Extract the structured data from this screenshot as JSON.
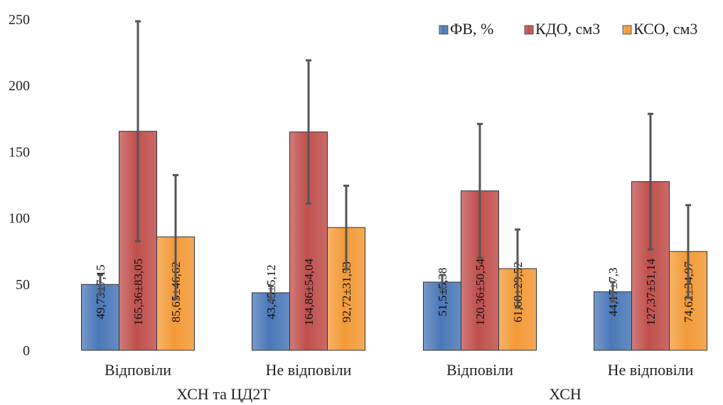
{
  "chart_data": {
    "type": "bar",
    "ylim": [
      0,
      250
    ],
    "y_ticks": [
      0,
      50,
      100,
      150,
      200,
      250
    ],
    "grid": false,
    "legend_position": "top-right",
    "categories": [
      "Відповіли",
      "Не відповіли",
      "Відповіли",
      "Не відповіли"
    ],
    "groups": [
      {
        "label": "ХСН та ЦД2Т",
        "span": [
          0,
          1
        ]
      },
      {
        "label": "ХСН",
        "span": [
          2,
          3
        ]
      }
    ],
    "series": [
      {
        "name": "ФВ, %",
        "color": "#4a78b8",
        "values": [
          49.73,
          43.45,
          51.5,
          44.17
        ],
        "errors": [
          7.15,
          5.12,
          5.38,
          7.3
        ],
        "labels": [
          "49,73±7,15",
          "43,45±5,12",
          "51,5±5,38",
          "44,17±7,3"
        ]
      },
      {
        "name": "КДО, см3",
        "color": "#c0504d",
        "values": [
          165.36,
          164.86,
          120.36,
          127.37
        ],
        "errors": [
          83.05,
          54.04,
          50.54,
          51.14
        ],
        "labels": [
          "165,36±83,05",
          "164,86±54,04",
          "120,36±50,54",
          "127,37±51,14"
        ]
      },
      {
        "name": "КСО, см3",
        "color": "#f39a38",
        "values": [
          85.65,
          92.72,
          61.68,
          74.62
        ],
        "errors": [
          46.62,
          31.53,
          29.52,
          34.97
        ],
        "labels": [
          "85,65±46,62",
          "92,72±31,53",
          "61,68±29,52",
          "74,62±34,97"
        ]
      }
    ]
  }
}
